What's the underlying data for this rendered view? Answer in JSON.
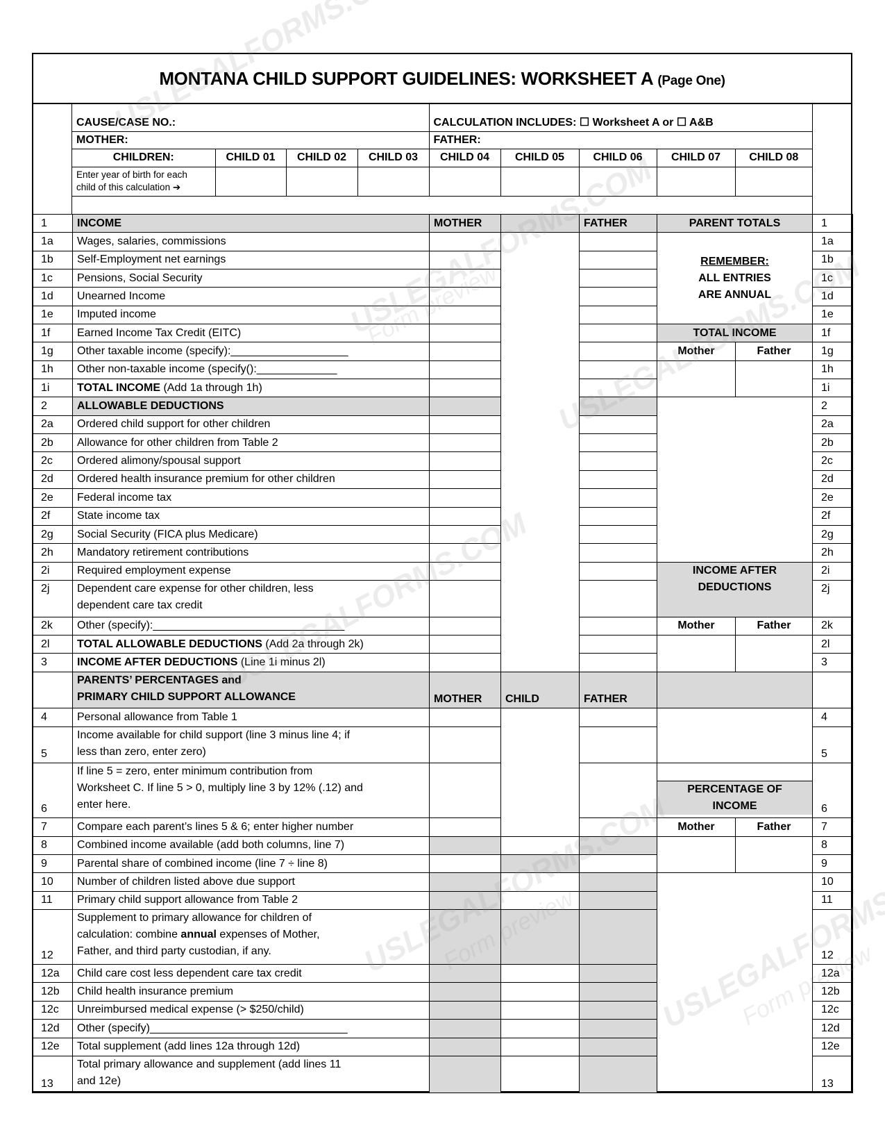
{
  "title": {
    "main": "MONTANA CHILD SUPPORT GUIDELINES:  WORKSHEET A",
    "sub": "(Page One)"
  },
  "header": {
    "cause_label": "CAUSE/CASE NO.:",
    "calc_label": "CALCULATION INCLUDES:  ☐ Worksheet A  or  ☐ A&B",
    "mother_label": "MOTHER:",
    "father_label": "FATHER:",
    "children_label": "CHILDREN:",
    "children": [
      "CHILD 01",
      "CHILD 02",
      "CHILD 03",
      "CHILD 04",
      "CHILD 05",
      "CHILD 06",
      "CHILD 07",
      "CHILD 08"
    ],
    "year_prompt": [
      "Enter year of birth for each",
      "child of this calculation ➔"
    ]
  },
  "columns": {
    "mother": "MOTHER",
    "child": "CHILD",
    "father": "FATHER",
    "parent_totals": "PARENT TOTALS"
  },
  "panel": {
    "remember": [
      "REMEMBER:",
      "ALL ENTRIES",
      "ARE ANNUAL"
    ],
    "total_income": "TOTAL INCOME",
    "income_after": [
      "INCOME AFTER",
      "DEDUCTIONS"
    ],
    "percentage": [
      "PERCENTAGE OF",
      "INCOME"
    ],
    "mother": "Mother",
    "father": "Father"
  },
  "rows": [
    {
      "num": "1",
      "lines": [
        [
          {
            "t": "INCOME",
            "b": true
          }
        ]
      ]
    },
    {
      "num": "1a",
      "lines": [
        [
          {
            "t": "Wages, salaries, commissions"
          }
        ]
      ]
    },
    {
      "num": "1b",
      "lines": [
        [
          {
            "t": "Self-Employment net earnings"
          }
        ]
      ]
    },
    {
      "num": "1c",
      "lines": [
        [
          {
            "t": "Pensions, Social Security"
          }
        ]
      ]
    },
    {
      "num": "1d",
      "lines": [
        [
          {
            "t": "Unearned Income"
          }
        ]
      ]
    },
    {
      "num": "1e",
      "lines": [
        [
          {
            "t": "Imputed income"
          }
        ]
      ]
    },
    {
      "num": "1f",
      "lines": [
        [
          {
            "t": "Earned Income Tax Credit (EITC)"
          }
        ]
      ]
    },
    {
      "num": "1g",
      "lines": [
        [
          {
            "t": "Other taxable income (specify):___________________"
          }
        ]
      ]
    },
    {
      "num": "1h",
      "lines": [
        [
          {
            "t": "Other non-taxable income (specify():_____________"
          }
        ]
      ]
    },
    {
      "num": "1i",
      "lines": [
        [
          {
            "t": "TOTAL INCOME",
            "b": true
          },
          {
            "t": " (Add 1a through 1h)"
          }
        ]
      ]
    },
    {
      "num": "2",
      "lines": [
        [
          {
            "t": "ALLOWABLE DEDUCTIONS",
            "b": true
          }
        ]
      ]
    },
    {
      "num": "2a",
      "lines": [
        [
          {
            "t": "Ordered child support for other children"
          }
        ]
      ]
    },
    {
      "num": "2b",
      "lines": [
        [
          {
            "t": "Allowance for other children from Table 2"
          }
        ]
      ]
    },
    {
      "num": "2c",
      "lines": [
        [
          {
            "t": "Ordered alimony/spousal support"
          }
        ]
      ]
    },
    {
      "num": "2d",
      "lines": [
        [
          {
            "t": "Ordered health insurance premium for other children"
          }
        ]
      ]
    },
    {
      "num": "2e",
      "lines": [
        [
          {
            "t": "Federal income tax"
          }
        ]
      ]
    },
    {
      "num": "2f",
      "lines": [
        [
          {
            "t": "State income tax"
          }
        ]
      ]
    },
    {
      "num": "2g",
      "lines": [
        [
          {
            "t": "Social Security (FICA plus Medicare)"
          }
        ]
      ]
    },
    {
      "num": "2h",
      "lines": [
        [
          {
            "t": "Mandatory retirement contributions"
          }
        ]
      ]
    },
    {
      "num": "2i",
      "lines": [
        [
          {
            "t": "Required employment expense"
          }
        ]
      ]
    },
    {
      "num": "2j",
      "lines": [
        [
          {
            "t": "Dependent care expense for other children, less"
          }
        ],
        [
          {
            "t": "dependent care tax credit"
          }
        ]
      ]
    },
    {
      "num": "2k",
      "lines": [
        [
          {
            "t": "Other (specify):_______________________________"
          }
        ]
      ]
    },
    {
      "num": "2l",
      "lines": [
        [
          {
            "t": "TOTAL ALLOWABLE DEDUCTIONS",
            "b": true
          },
          {
            "t": " (Add 2a through 2k)"
          }
        ]
      ]
    },
    {
      "num": "3",
      "lines": [
        [
          {
            "t": "INCOME AFTER DEDUCTIONS",
            "b": true
          },
          {
            "t": " (Line 1i minus 2l)"
          }
        ]
      ]
    },
    {
      "num": "",
      "lines": [
        [
          {
            "t": "PARENTS’ PERCENTAGES and",
            "b": true
          }
        ],
        [
          {
            "t": "PRIMARY CHILD SUPPORT ALLOWANCE",
            "b": true
          }
        ]
      ]
    },
    {
      "num": "4",
      "lines": [
        [
          {
            "t": "Personal allowance from Table 1"
          }
        ]
      ]
    },
    {
      "num": "5",
      "lines": [
        [
          {
            "t": "Income available for child support (line 3 minus line 4;    if"
          }
        ],
        [
          {
            "t": "less than zero, enter zero)"
          }
        ]
      ]
    },
    {
      "num": "6",
      "lines": [
        [
          {
            "t": "If line 5 = zero, enter minimum contribution from"
          }
        ],
        [
          {
            "t": "Worksheet C.  If line 5 > 0, multiply line 3 by 12% (.12) and"
          }
        ],
        [
          {
            "t": "enter here."
          }
        ]
      ]
    },
    {
      "num": "7",
      "lines": [
        [
          {
            "t": "Compare each parent’s lines 5 & 6; enter higher number"
          }
        ]
      ]
    },
    {
      "num": "8",
      "lines": [
        [
          {
            "t": "Combined income available (add both columns, line 7)"
          }
        ]
      ]
    },
    {
      "num": "9",
      "lines": [
        [
          {
            "t": "Parental share of combined income (line 7 ÷ line 8)"
          }
        ]
      ]
    },
    {
      "num": "10",
      "lines": [
        [
          {
            "t": "Number of children listed above due support"
          }
        ]
      ]
    },
    {
      "num": "11",
      "lines": [
        [
          {
            "t": "Primary child support allowance from Table 2"
          }
        ]
      ]
    },
    {
      "num": "12",
      "lines": [
        [
          {
            "t": "Supplement to primary allowance for children of"
          }
        ],
        [
          {
            "t": "calculation: combine "
          },
          {
            "t": "annual",
            "b": true
          },
          {
            "t": " expenses of Mother,"
          }
        ],
        [
          {
            "t": "Father, and third party custodian, if any."
          }
        ]
      ]
    },
    {
      "num": "12a",
      "lines": [
        [
          {
            "t": "Child care cost less dependent care tax credit"
          }
        ]
      ]
    },
    {
      "num": "12b",
      "lines": [
        [
          {
            "t": "Child health insurance premium"
          }
        ]
      ]
    },
    {
      "num": "12c",
      "lines": [
        [
          {
            "t": "Unreimbursed medical expense (> $250/child)"
          }
        ]
      ]
    },
    {
      "num": "12d",
      "lines": [
        [
          {
            "t": "Other (specify)________________________________"
          }
        ]
      ]
    },
    {
      "num": "12e",
      "lines": [
        [
          {
            "t": "Total supplement (add lines 12a through 12d)"
          }
        ]
      ]
    },
    {
      "num": "13",
      "lines": [
        [
          {
            "t": "Total primary allowance and supplement (add lines 11"
          }
        ],
        [
          {
            "t": "and 12e)"
          }
        ]
      ]
    }
  ],
  "colors": {
    "shade": "#d9d9d9",
    "border": "#000000"
  },
  "watermark": {
    "brand": "USLEGALFORMS.COM",
    "note": "Form preview"
  }
}
